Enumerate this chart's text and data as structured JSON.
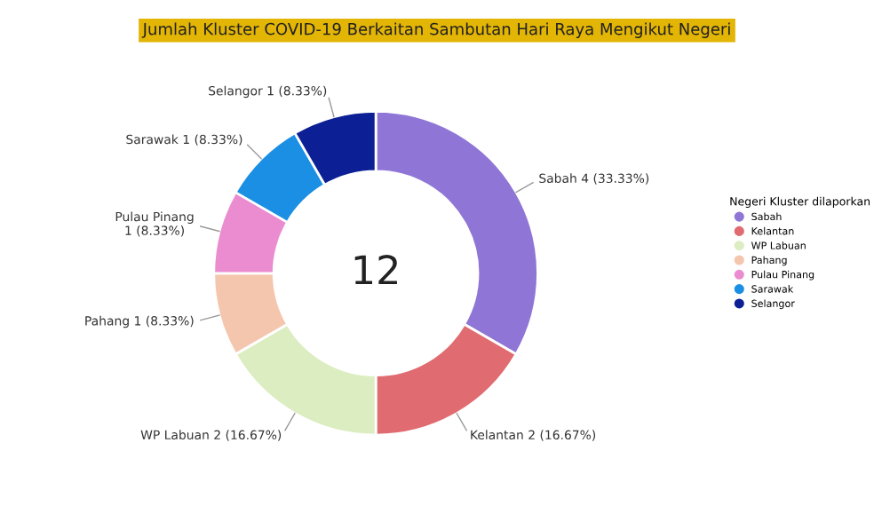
{
  "chart_data": {
    "type": "donut",
    "title": "Jumlah Kluster COVID-19 Berkaitan Sambutan Hari Raya Mengikut Negeri",
    "legend_title": "Negeri Kluster dilaporkan",
    "legend": "right",
    "categories": [
      "Sabah",
      "Kelantan",
      "WP Labuan",
      "Pahang",
      "Pulau Pinang",
      "Sarawak",
      "Selangor"
    ],
    "values": [
      4,
      2,
      2,
      1,
      1,
      1,
      1
    ],
    "colors": [
      "#8f76d6",
      "#e06b70",
      "#dcedc1",
      "#f5c6ae",
      "#ea8ccf",
      "#1a8fe3",
      "#0c1f94"
    ],
    "value_labels": [
      "Sabah 4 (33.33%)",
      "Kelantan 2 (16.67%)",
      "WP Labuan 2 (16.67%)",
      "Pahang 1 (8.33%)",
      "Pulau Pinang\n1 (8.33%)",
      "Sarawak 1 (8.33%)",
      "Selangor 1 (8.33%)"
    ],
    "annotations": [
      "12"
    ]
  }
}
